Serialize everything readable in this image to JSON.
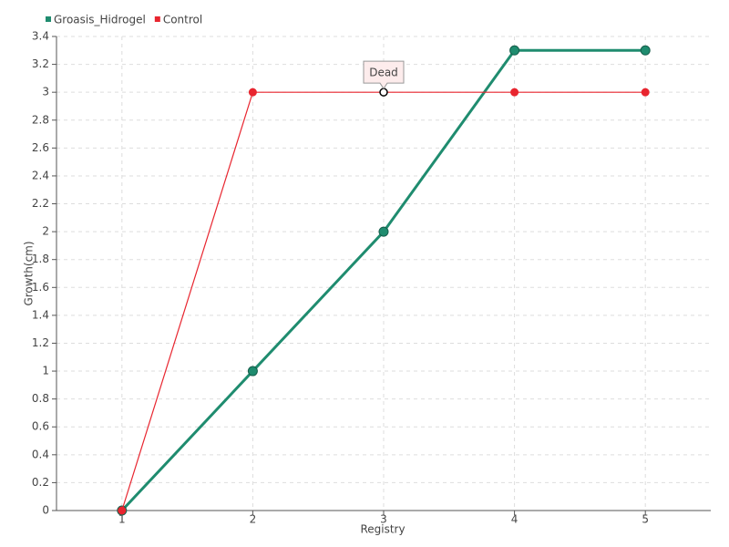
{
  "chart_data": {
    "type": "line",
    "x_label": "Registry",
    "y_label": "Growth(cm)",
    "categories": [
      "1",
      "2",
      "3",
      "4",
      "5"
    ],
    "series": [
      {
        "name": "Groasis_Hidrogel",
        "color": "#1f8c6f",
        "values": [
          0,
          1,
          2,
          3.3,
          3.3
        ]
      },
      {
        "name": "Control",
        "color": "#e8252f",
        "values": [
          0,
          3,
          3,
          3,
          3
        ]
      }
    ],
    "annotation": "Dead",
    "ylim": [
      0,
      3.4
    ],
    "yticks": [
      0,
      0.2,
      0.4,
      0.6,
      0.8,
      1,
      1.2,
      1.4,
      1.6,
      1.8,
      2,
      2.2,
      2.4,
      2.6,
      2.8,
      3,
      3.2,
      3.4
    ],
    "grid": true,
    "legend": "top-left"
  }
}
